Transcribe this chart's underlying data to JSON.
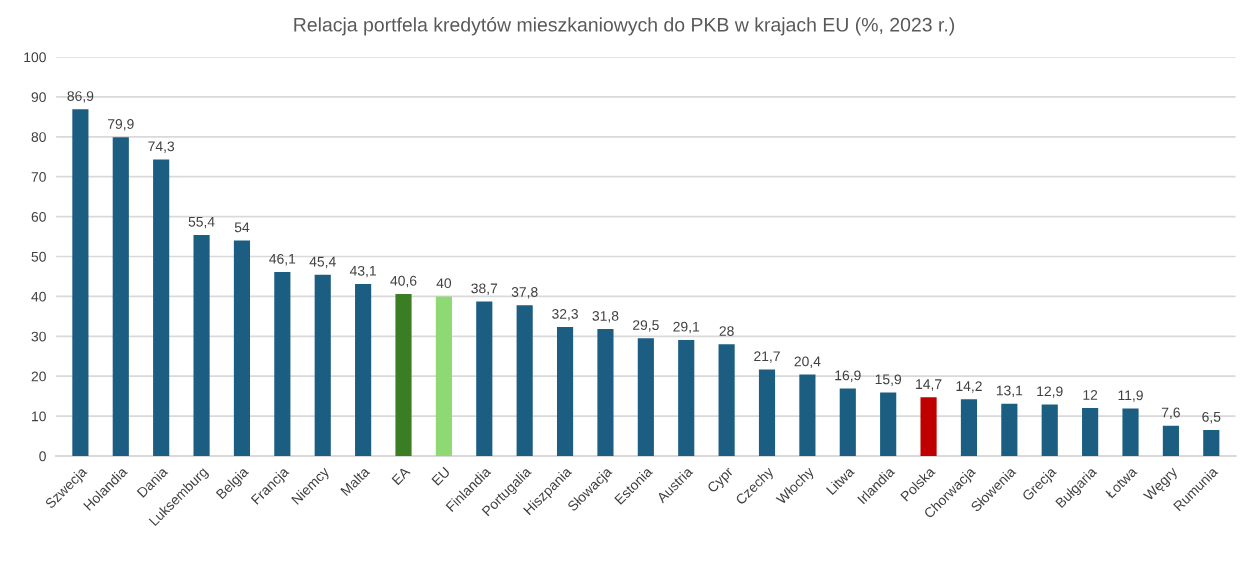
{
  "chart_data": {
    "type": "bar",
    "title": "Relacja portfela kredytów mieszkaniowych do PKB w krajach EU (%, 2023 r.)",
    "categories": [
      "Szwecja",
      "Holandia",
      "Dania",
      "Luksemburg",
      "Belgia",
      "Francja",
      "Niemcy",
      "Malta",
      "EA",
      "EU",
      "Finlandia",
      "Portugalia",
      "Hiszpania",
      "Słowacja",
      "Estonia",
      "Austria",
      "Cypr",
      "Czechy",
      "Włochy",
      "Litwa",
      "Irlandia",
      "Polska",
      "Chorwacja",
      "Słowenia",
      "Grecja",
      "Bułgaria",
      "Łotwa",
      "Węgry",
      "Rumunia"
    ],
    "values": [
      86.9,
      79.9,
      74.3,
      55.4,
      54,
      46.1,
      45.4,
      43.1,
      40.6,
      40,
      38.7,
      37.8,
      32.3,
      31.8,
      29.5,
      29.1,
      28,
      21.7,
      20.4,
      16.9,
      15.9,
      14.7,
      14.2,
      13.1,
      12.9,
      12,
      11.9,
      7.6,
      6.5
    ],
    "value_labels": [
      "86,9",
      "79,9",
      "74,3",
      "55,4",
      "54",
      "46,1",
      "45,4",
      "43,1",
      "40,6",
      "40",
      "38,7",
      "37,8",
      "32,3",
      "31,8",
      "29,5",
      "29,1",
      "28",
      "21,7",
      "20,4",
      "16,9",
      "15,9",
      "14,7",
      "14,2",
      "13,1",
      "12,9",
      "12",
      "11,9",
      "7,6",
      "6,5"
    ],
    "colors": [
      "#1b5e82",
      "#1b5e82",
      "#1b5e82",
      "#1b5e82",
      "#1b5e82",
      "#1b5e82",
      "#1b5e82",
      "#1b5e82",
      "#3b7d23",
      "#8ed973",
      "#1b5e82",
      "#1b5e82",
      "#1b5e82",
      "#1b5e82",
      "#1b5e82",
      "#1b5e82",
      "#1b5e82",
      "#1b5e82",
      "#1b5e82",
      "#1b5e82",
      "#1b5e82",
      "#c00000",
      "#1b5e82",
      "#1b5e82",
      "#1b5e82",
      "#1b5e82",
      "#1b5e82",
      "#1b5e82",
      "#1b5e82"
    ],
    "ylim": [
      0,
      100
    ],
    "yticks": [
      0,
      10,
      20,
      30,
      40,
      50,
      60,
      70,
      80,
      90,
      100
    ],
    "grid": "y"
  }
}
